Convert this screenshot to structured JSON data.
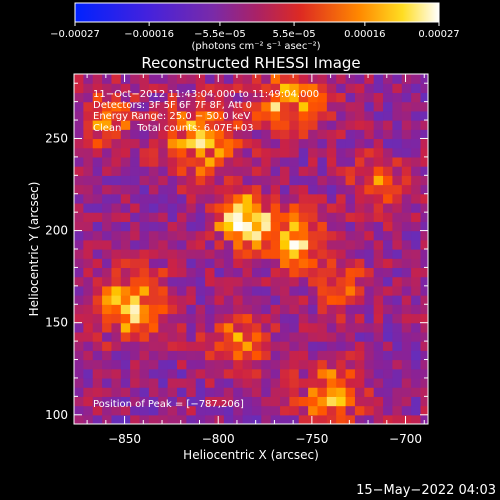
{
  "chart_data": {
    "type": "heatmap",
    "title": "Reconstructed RHESSI Image",
    "xlabel": "Heliocentric X (arcsec)",
    "ylabel": "Heliocentric Y (arcsec)",
    "xlim": [
      -877,
      -688
    ],
    "ylim": [
      95,
      285
    ],
    "x_ticks": [
      -850,
      -800,
      -750,
      -700
    ],
    "x_tick_labels": [
      "−850",
      "−800",
      "−750",
      "−700"
    ],
    "y_ticks": [
      100,
      150,
      200,
      250
    ],
    "y_tick_labels": [
      "100",
      "150",
      "200",
      "250"
    ],
    "colorbar": {
      "range": [
        -0.00027,
        0.00027
      ],
      "ticks": [
        -0.00027,
        -0.00016,
        -5.5e-05,
        5.5e-05,
        0.00016,
        0.00027
      ],
      "tick_labels": [
        "−0.00027",
        "−0.00016",
        "−5.5e−05",
        "5.5e−05",
        "0.00016",
        "0.00027"
      ],
      "unit_label": "(photons cm⁻² s⁻¹ asec⁻²)",
      "colors": [
        "#0022ff",
        "#5533cc",
        "#882299",
        "#cc2244",
        "#ff5500",
        "#ffcc00",
        "#ffffff"
      ]
    },
    "annotations": [
      "11−Oct−2012 11:43:04.000 to 11:49:04.000",
      "Detectors: 3F 5F 6F 7F 8F, Att 0",
      "Energy Range: 25.0 − 50.0 keV",
      "Clean     Total counts: 6.07E+03"
    ],
    "peak_label": "Position of Peak = [−787,206]",
    "peak": [
      -787,
      206
    ],
    "footer_date": "15−May−2022 04:03"
  }
}
